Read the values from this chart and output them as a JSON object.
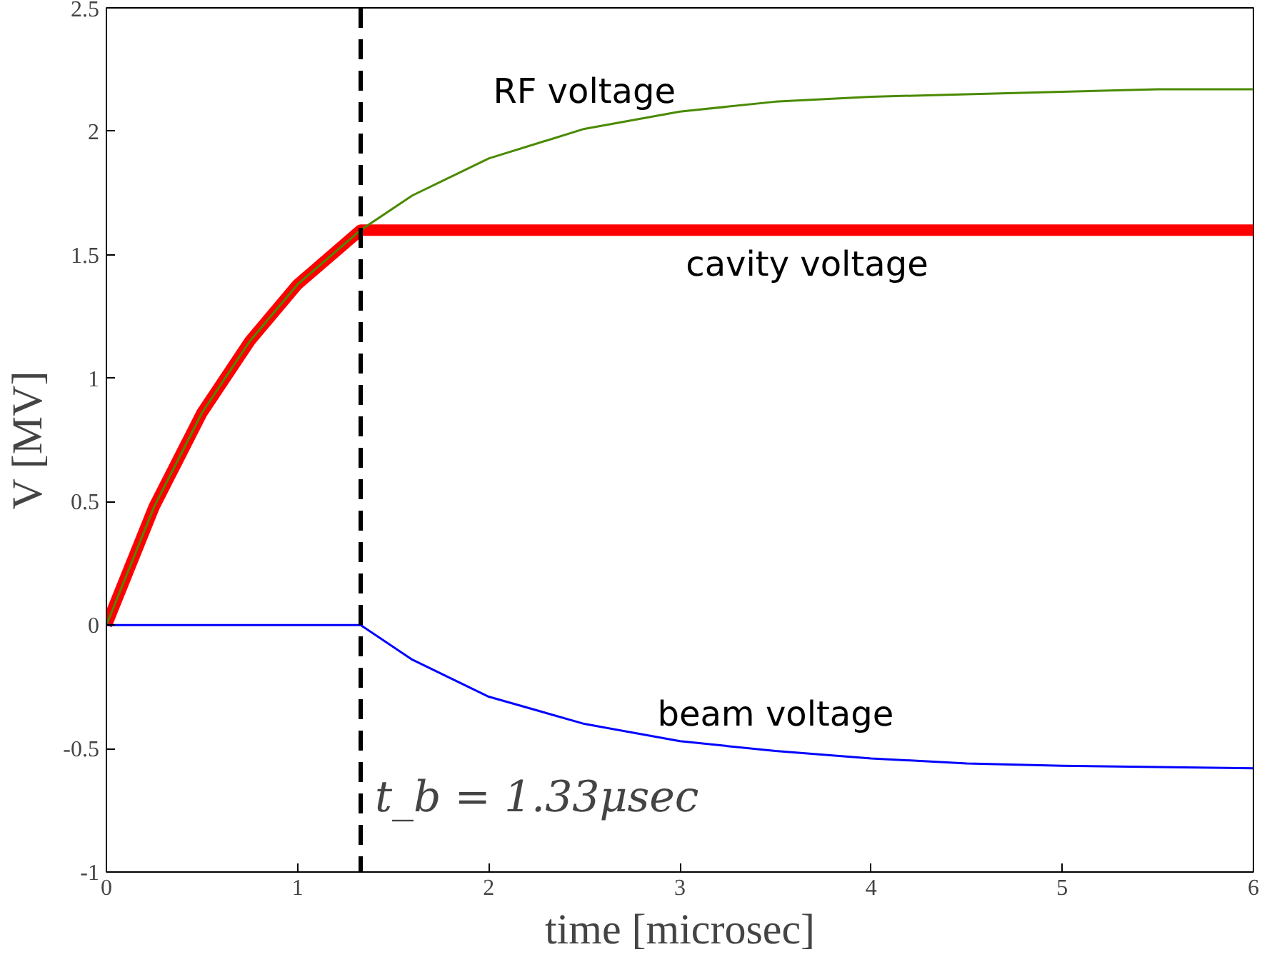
{
  "chart_data": {
    "type": "line",
    "xlabel": "time [microsec]",
    "ylabel": "V [MV]",
    "xlim": [
      0,
      6
    ],
    "ylim": [
      -1,
      2.5
    ],
    "xticks": [
      0,
      1,
      2,
      3,
      4,
      5,
      6
    ],
    "yticks": [
      -1,
      -0.5,
      0,
      0.5,
      1,
      1.5,
      2,
      2.5
    ],
    "grid": false,
    "marker": "none",
    "line_style": "solid",
    "series": [
      {
        "name": "cavity voltage",
        "color": "#ff0000",
        "x": [
          0,
          0.25,
          0.5,
          0.75,
          1,
          1.33,
          6
        ],
        "values": [
          0,
          0.48,
          0.86,
          1.15,
          1.38,
          1.6,
          1.6
        ]
      },
      {
        "name": "RF voltage",
        "color": "#4a8a00",
        "x": [
          0,
          0.25,
          0.5,
          0.75,
          1,
          1.33,
          1.6,
          2,
          2.5,
          3,
          3.5,
          4,
          4.5,
          5,
          5.5,
          6
        ],
        "values": [
          0,
          0.48,
          0.86,
          1.15,
          1.38,
          1.6,
          1.74,
          1.89,
          2.01,
          2.08,
          2.12,
          2.14,
          2.15,
          2.16,
          2.17,
          2.17
        ]
      },
      {
        "name": "beam voltage",
        "color": "#0000ff",
        "x": [
          0,
          1.33,
          1.6,
          2,
          2.5,
          3,
          3.5,
          4,
          4.5,
          5,
          5.5,
          6
        ],
        "values": [
          0,
          0,
          -0.14,
          -0.29,
          -0.4,
          -0.47,
          -0.51,
          -0.54,
          -0.56,
          -0.57,
          -0.575,
          -0.58
        ]
      }
    ],
    "ref_lines": [
      {
        "axis": "x",
        "value": 1.33,
        "color": "#000000",
        "line_style": "dashed"
      }
    ],
    "annotations": [
      {
        "text": "t_b = 1.33μsec",
        "x": 1.33,
        "y": -0.8
      }
    ]
  }
}
